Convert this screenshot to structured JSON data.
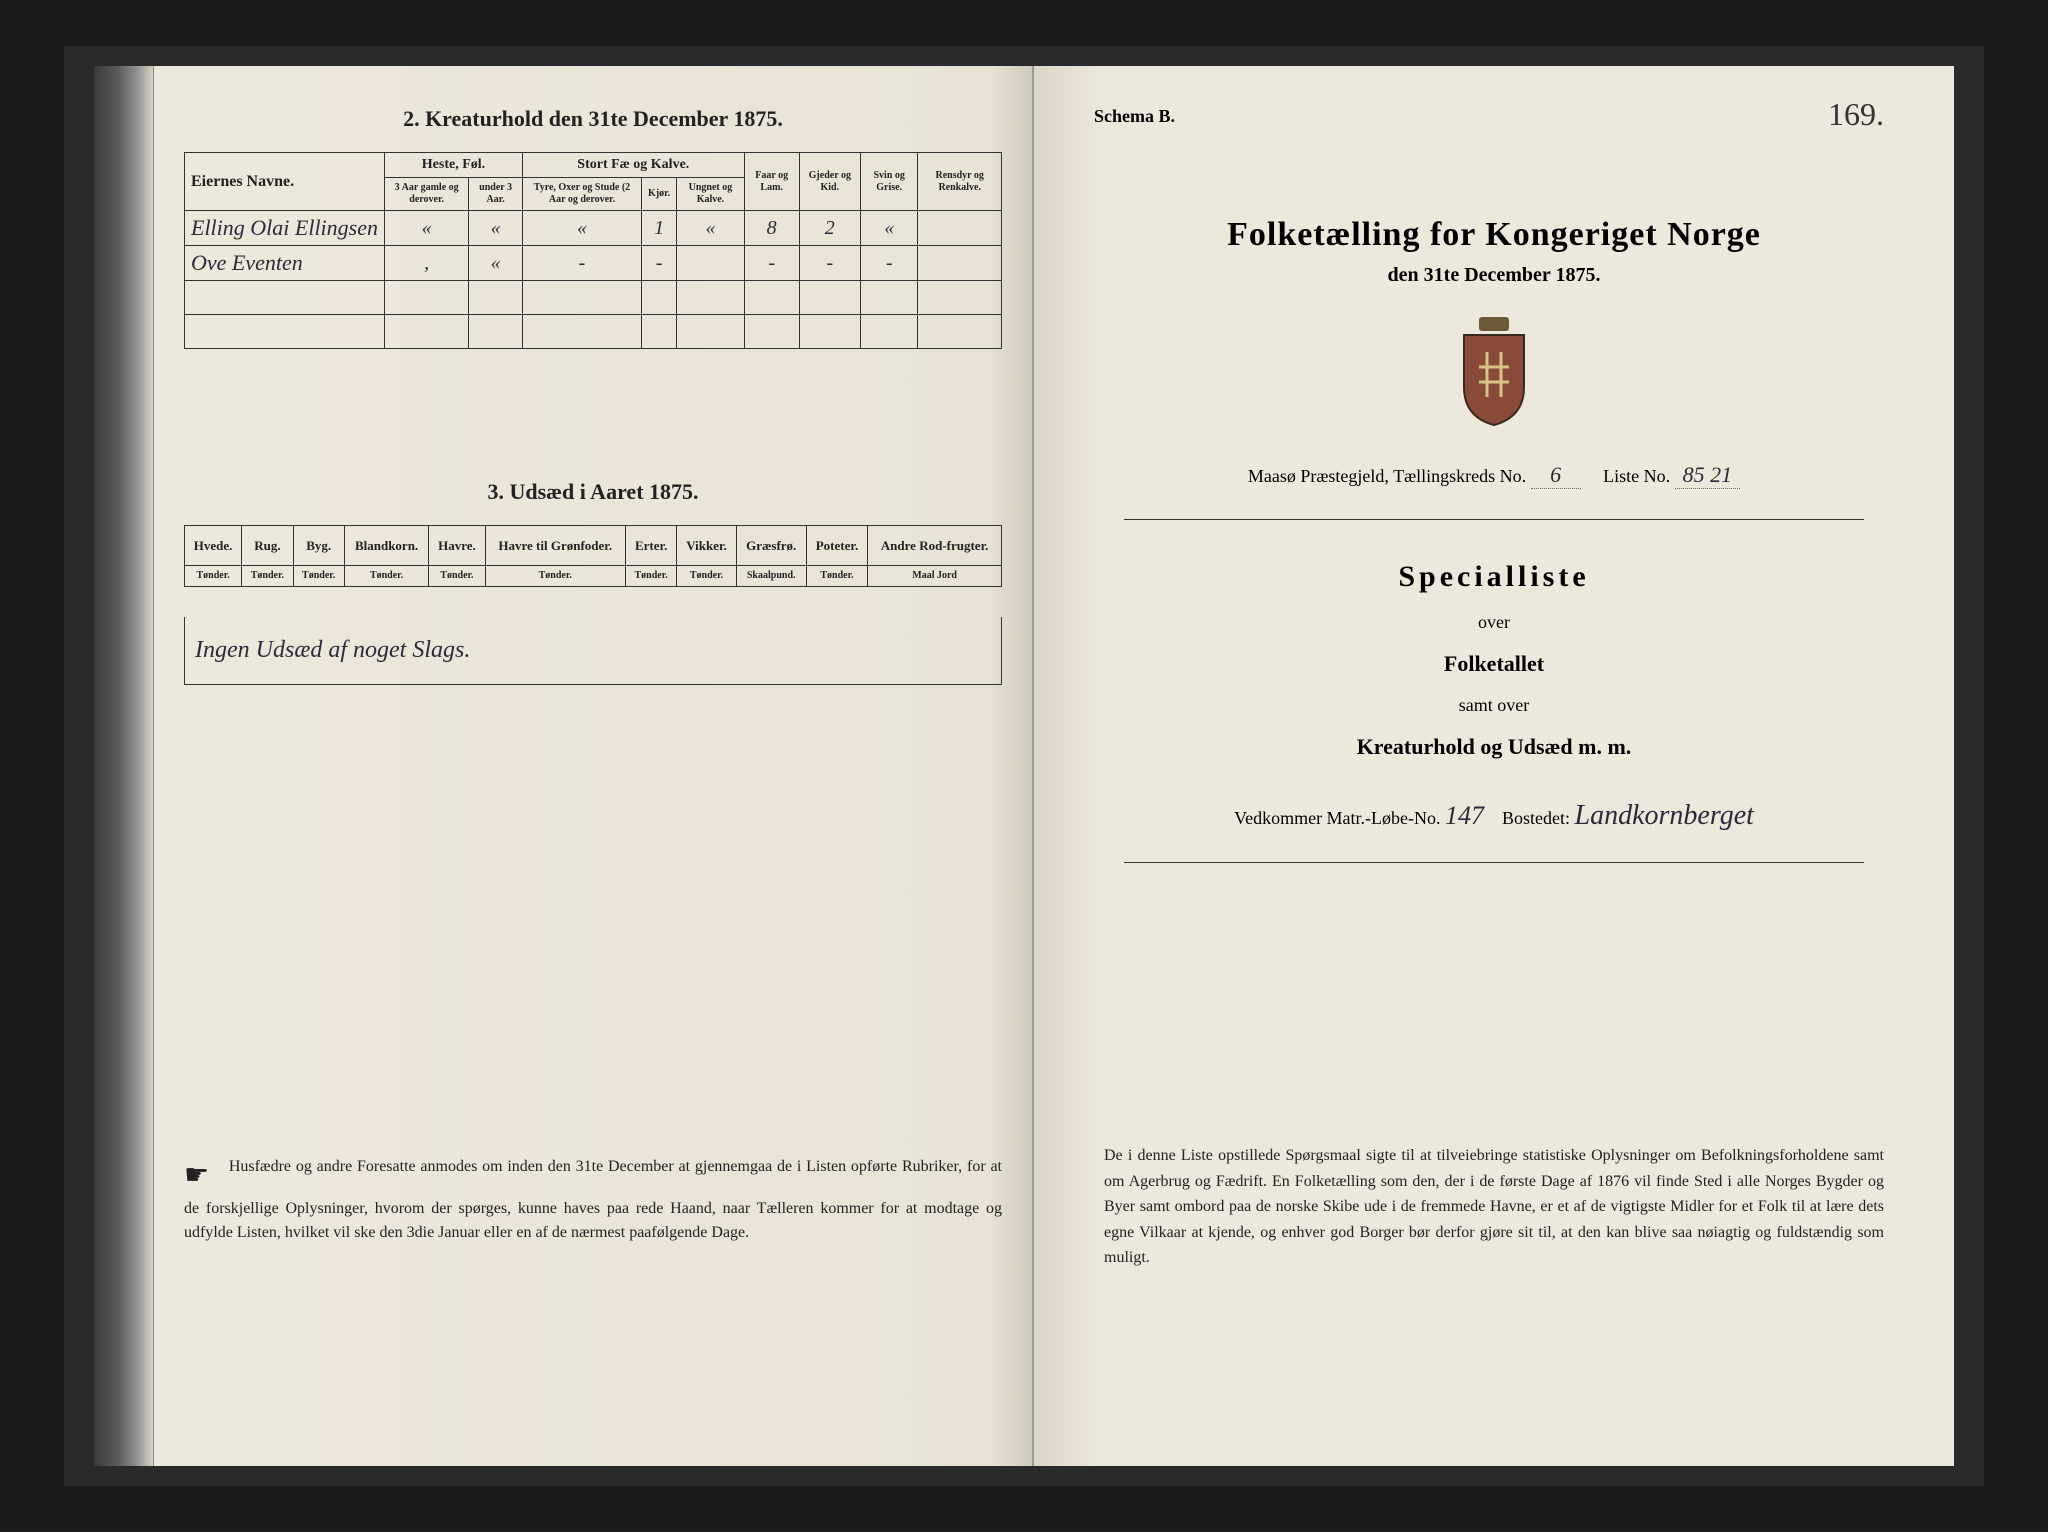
{
  "left_page": {
    "section2_title": "2. Kreaturhold den 31te December 1875.",
    "table1": {
      "col_name": "Eiernes Navne.",
      "group_heste": "Heste, Føl.",
      "group_fae": "Stort Fæ og Kalve.",
      "col_faar": "Faar og Lam.",
      "col_gjeder": "Gjeder og Kid.",
      "col_svin": "Svin og Grise.",
      "col_rensdyr": "Rensdyr og Renkalve.",
      "sub_heste1": "3 Aar gamle og derover.",
      "sub_heste2": "under 3 Aar.",
      "sub_fae1": "Tyre, Oxer og Stude (2 Aar og derover.",
      "sub_fae2": "Kjør.",
      "sub_fae3": "Ungnet og Kalve.",
      "rows": [
        {
          "name": "Elling Olai Ellingsen",
          "c1": "«",
          "c2": "«",
          "c3": "«",
          "c4": "1",
          "c5": "«",
          "c6": "8",
          "c7": "2",
          "c8": "«",
          "c9": ""
        },
        {
          "name": "Ove Eventen",
          "c1": ",",
          "c2": "«",
          "c3": "-",
          "c4": "-",
          "c5": "",
          "c6": "-",
          "c7": "-",
          "c8": "-",
          "c9": ""
        },
        {
          "name": "",
          "c1": "",
          "c2": "",
          "c3": "",
          "c4": "",
          "c5": "",
          "c6": "",
          "c7": "",
          "c8": "",
          "c9": ""
        },
        {
          "name": "",
          "c1": "",
          "c2": "",
          "c3": "",
          "c4": "",
          "c5": "",
          "c6": "",
          "c7": "",
          "c8": "",
          "c9": ""
        }
      ]
    },
    "section3_title": "3. Udsæd i Aaret 1875.",
    "table2": {
      "cols": [
        "Hvede.",
        "Rug.",
        "Byg.",
        "Blandkorn.",
        "Havre.",
        "Havre til Grønfoder.",
        "Erter.",
        "Vikker.",
        "Græsfrø.",
        "Poteter.",
        "Andre Rod-frugter."
      ],
      "units": [
        "Tønder.",
        "Tønder.",
        "Tønder.",
        "Tønder.",
        "Tønder.",
        "Tønder.",
        "Tønder.",
        "Tønder.",
        "Skaalpund.",
        "Tønder.",
        "Maal Jord"
      ]
    },
    "seed_note": "Ingen Udsæd af noget Slags.",
    "legal": "Husfædre og andre Foresatte anmodes om inden den 31te December at gjennemgaa de i Listen opførte Rubriker, for at de forskjellige Oplysninger, hvorom der spørges, kunne haves paa rede Haand, naar Tælleren kommer for at modtage og udfylde Listen, hvilket vil ske den 3die Januar eller en af de nærmest paafølgende Dage."
  },
  "right_page": {
    "schema": "Schema B.",
    "page_number": "169.",
    "title": "Folketælling for Kongeriget Norge",
    "subtitle": "den 31te December 1875.",
    "praestegjeld_label": "Maasø Præstegjeld, Tællingskreds No.",
    "praestegjeld_no": "6",
    "liste_label": "Liste No.",
    "liste_no": "85 21",
    "specialliste": "Specialliste",
    "over": "over",
    "folketallet": "Folketallet",
    "samt_over": "samt over",
    "kreaturhold": "Kreaturhold og Udsæd m. m.",
    "vedkommer_label": "Vedkommer Matr.-Løbe-No.",
    "matr_no": "147",
    "bostedet_label": "Bostedet:",
    "bostedet": "Landkornberget",
    "legal": "De i denne Liste opstillede Spørgsmaal sigte til at tilveiebringe statistiske Oplysninger om Befolkningsforholdene samt om Agerbrug og Fædrift. En Folketælling som den, der i de første Dage af 1876 vil finde Sted i alle Norges Bygder og Byer samt ombord paa de norske Skibe ude i de fremmede Havne, er et af de vigtigste Midler for et Folk til at lære dets egne Vilkaar at kjende, og enhver god Borger bør derfor gjøre sit til, at den kan blive saa nøiagtig og fuldstændig som muligt."
  },
  "colors": {
    "paper": "#ede8dc",
    "ink": "#222222",
    "handwriting": "#2a2a3a",
    "background": "#1a1a1a"
  }
}
